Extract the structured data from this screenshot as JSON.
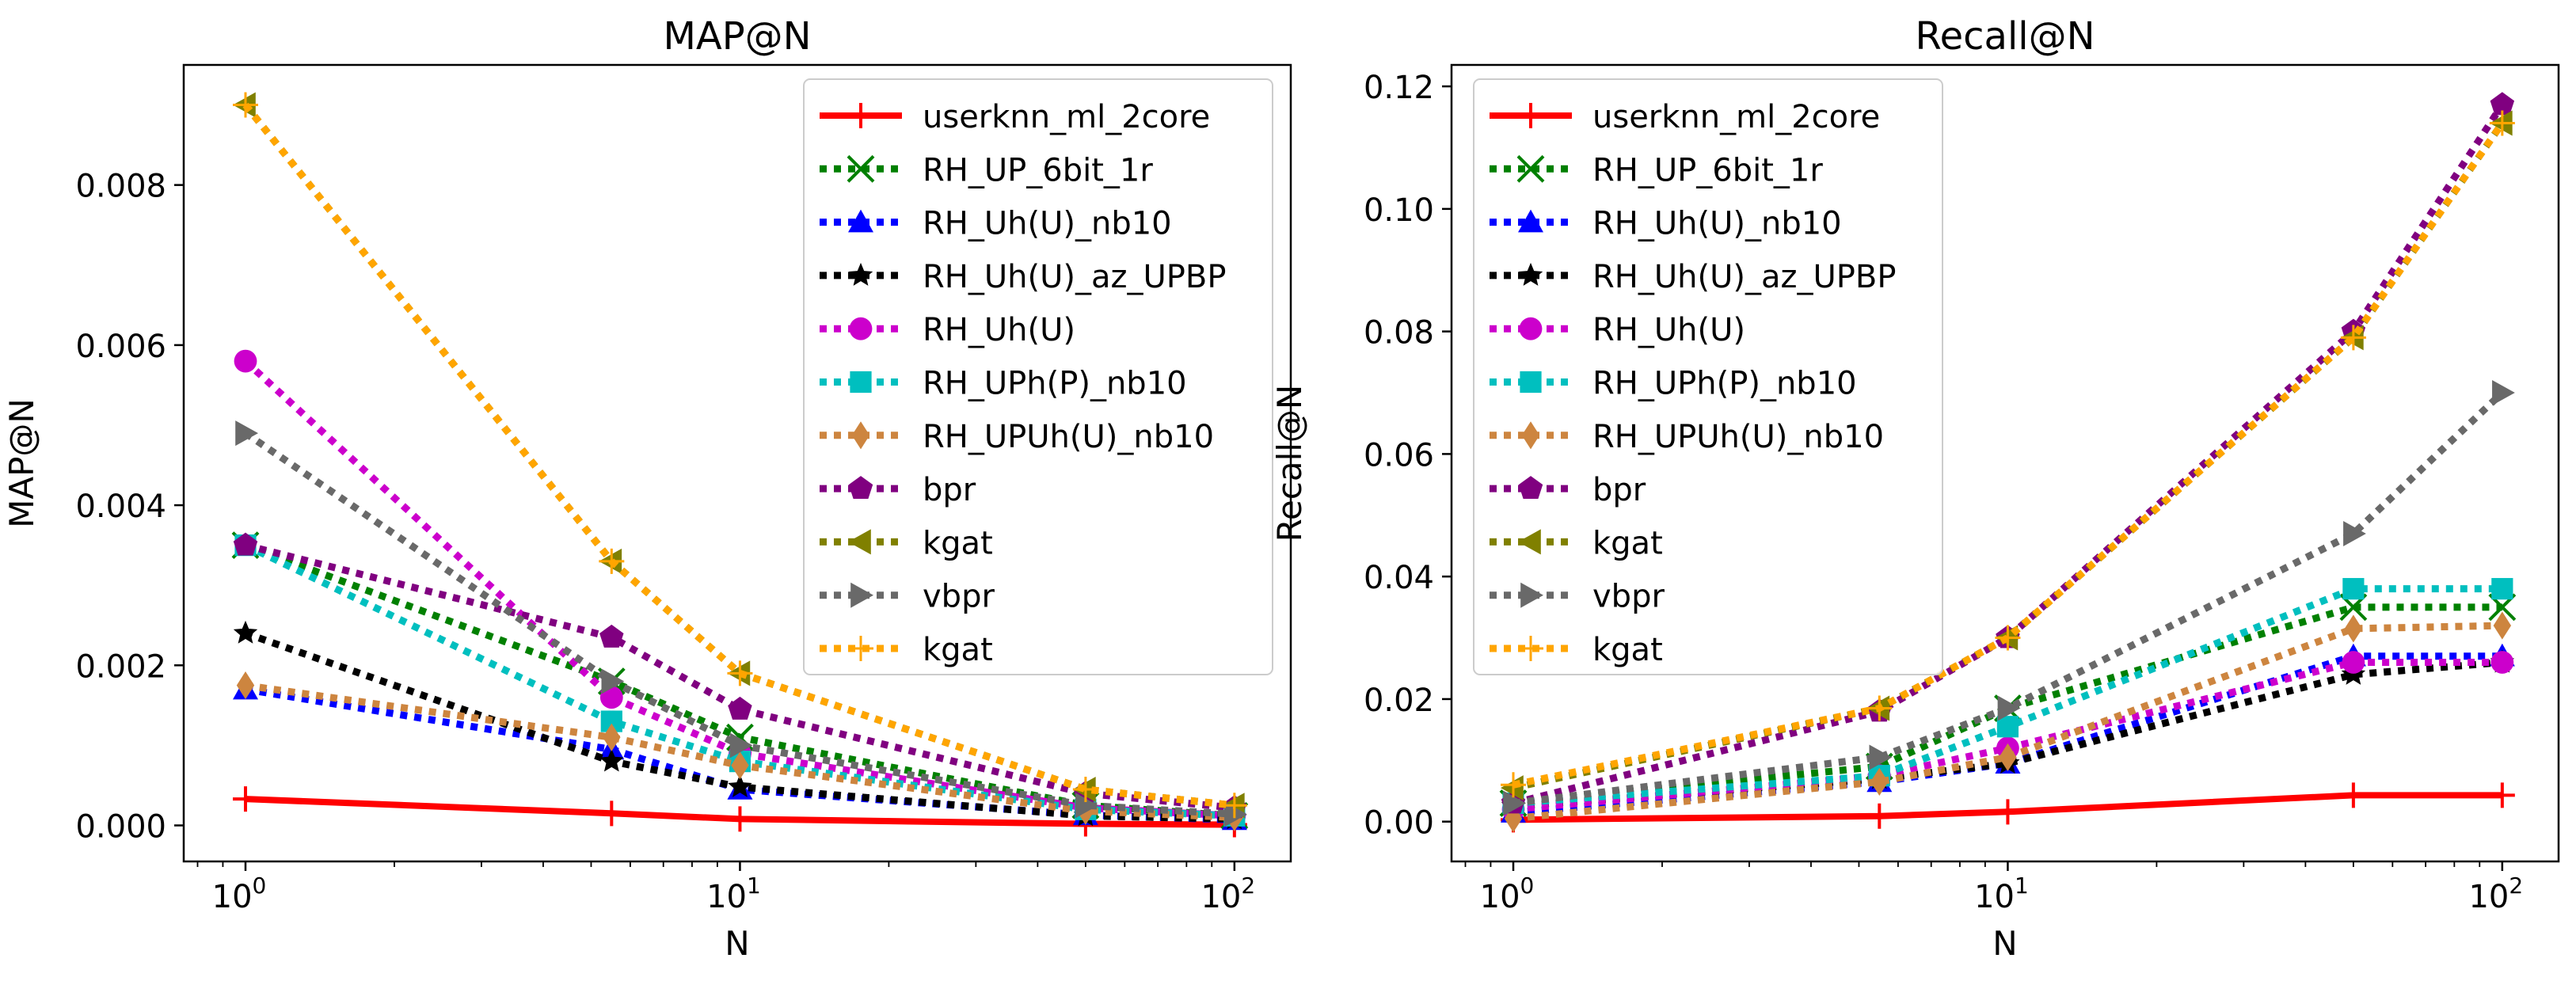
{
  "chart_data": [
    {
      "type": "line",
      "title": "MAP@N",
      "xlabel": "N",
      "ylabel": "MAP@N",
      "xscale": "log",
      "xlim": [
        0.75,
        130
      ],
      "ylim": [
        -0.00045,
        0.0095
      ],
      "x_ticks": [
        "10^0",
        "10^1",
        "10^2"
      ],
      "y_ticks": [
        "0.000",
        "0.002",
        "0.004",
        "0.006",
        "0.008"
      ],
      "y_tick_values": [
        0,
        0.002,
        0.004,
        0.006,
        0.008
      ],
      "legend_position": "top-right",
      "grid": false,
      "x": [
        1,
        5.5,
        10,
        50,
        100
      ],
      "series": [
        {
          "name": "userknn_ml_2core",
          "color": "#ff0000",
          "style": "solid",
          "marker": "plus",
          "values": [
            0.00033,
            0.00015,
            8e-05,
            2e-05,
            1e-05
          ]
        },
        {
          "name": "RH_UP_6bit_1r",
          "color": "#008000",
          "style": "dotted",
          "marker": "x",
          "values": [
            0.0035,
            0.0018,
            0.0011,
            0.00025,
            0.00012
          ]
        },
        {
          "name": "RH_Uh(U)_nb10",
          "color": "#0000ff",
          "style": "dotted",
          "marker": "triangle",
          "values": [
            0.0017,
            0.00095,
            0.00045,
            0.00013,
            7e-05
          ]
        },
        {
          "name": "RH_Uh(U)_az_UPBP",
          "color": "#000000",
          "style": "dotted",
          "marker": "star",
          "values": [
            0.0024,
            0.0008,
            0.00048,
            0.00012,
            8e-05
          ]
        },
        {
          "name": "RH_Uh(U)",
          "color": "#cc00cc",
          "style": "dotted",
          "marker": "circle",
          "values": [
            0.0058,
            0.0016,
            0.0009,
            0.00022,
            0.00012
          ]
        },
        {
          "name": "RH_UPh(P)_nb10",
          "color": "#00bfbf",
          "style": "dotted",
          "marker": "square",
          "values": [
            0.0035,
            0.0013,
            0.0008,
            0.0002,
            0.00012
          ]
        },
        {
          "name": "RH_UPUh(U)_nb10",
          "color": "#cd853f",
          "style": "dotted",
          "marker": "diamond",
          "values": [
            0.00175,
            0.0011,
            0.00075,
            0.00018,
            0.0001
          ]
        },
        {
          "name": "bpr",
          "color": "#800080",
          "style": "dotted",
          "marker": "pentagon",
          "values": [
            0.0035,
            0.00235,
            0.00145,
            0.0004,
            0.00022
          ]
        },
        {
          "name": "kgat",
          "color": "#808000",
          "style": "dotted",
          "marker": "triangle-left",
          "values": [
            0.009,
            0.0033,
            0.0019,
            0.00045,
            0.00025
          ]
        },
        {
          "name": "vbpr",
          "color": "#696969",
          "style": "dotted",
          "marker": "triangle-right",
          "values": [
            0.0049,
            0.0018,
            0.001,
            0.00025,
            0.00014
          ]
        },
        {
          "name": "kgat",
          "color": "#ffa500",
          "style": "dotted",
          "marker": "thin-plus",
          "values": [
            0.009,
            0.0033,
            0.0019,
            0.00045,
            0.00025
          ]
        }
      ]
    },
    {
      "type": "line",
      "title": "Recall@N",
      "xlabel": "N",
      "ylabel": "Recall@N",
      "xscale": "log",
      "xlim": [
        0.75,
        130
      ],
      "ylim": [
        -0.0065,
        0.1235
      ],
      "x_ticks": [
        "10^0",
        "10^1",
        "10^2"
      ],
      "y_ticks": [
        "0.00",
        "0.02",
        "0.04",
        "0.06",
        "0.08",
        "0.10",
        "0.12"
      ],
      "y_tick_values": [
        0,
        0.02,
        0.04,
        0.06,
        0.08,
        0.1,
        0.12
      ],
      "legend_position": "top-left",
      "grid": false,
      "x": [
        1,
        5.5,
        10,
        50,
        100
      ],
      "series": [
        {
          "name": "userknn_ml_2core",
          "color": "#ff0000",
          "style": "solid",
          "marker": "plus",
          "values": [
            0.0003,
            0.0009,
            0.0016,
            0.0043,
            0.0043
          ]
        },
        {
          "name": "RH_UP_6bit_1r",
          "color": "#008000",
          "style": "dotted",
          "marker": "x",
          "values": [
            0.003,
            0.009,
            0.0185,
            0.035,
            0.035
          ]
        },
        {
          "name": "RH_Uh(U)_nb10",
          "color": "#0000ff",
          "style": "dotted",
          "marker": "triangle",
          "values": [
            0.0015,
            0.0065,
            0.0095,
            0.027,
            0.027
          ]
        },
        {
          "name": "RH_Uh(U)_az_UPBP",
          "color": "#000000",
          "style": "dotted",
          "marker": "star",
          "values": [
            0.0025,
            0.007,
            0.0095,
            0.024,
            0.026
          ]
        },
        {
          "name": "RH_Uh(U)",
          "color": "#cc00cc",
          "style": "dotted",
          "marker": "circle",
          "values": [
            0.002,
            0.0075,
            0.012,
            0.026,
            0.026
          ]
        },
        {
          "name": "RH_UPh(P)_nb10",
          "color": "#00bfbf",
          "style": "dotted",
          "marker": "square",
          "values": [
            0.003,
            0.0075,
            0.0155,
            0.038,
            0.038
          ]
        },
        {
          "name": "RH_UPUh(U)_nb10",
          "color": "#cd853f",
          "style": "dotted",
          "marker": "diamond",
          "values": [
            0.0005,
            0.0065,
            0.0105,
            0.0315,
            0.032
          ]
        },
        {
          "name": "bpr",
          "color": "#800080",
          "style": "dotted",
          "marker": "pentagon",
          "values": [
            0.003,
            0.018,
            0.03,
            0.08,
            0.117
          ]
        },
        {
          "name": "kgat",
          "color": "#808000",
          "style": "dotted",
          "marker": "triangle-left",
          "values": [
            0.0055,
            0.0185,
            0.03,
            0.079,
            0.114
          ]
        },
        {
          "name": "vbpr",
          "color": "#696969",
          "style": "dotted",
          "marker": "triangle-right",
          "values": [
            0.003,
            0.0105,
            0.0185,
            0.047,
            0.07
          ]
        },
        {
          "name": "kgat",
          "color": "#ffa500",
          "style": "dotted",
          "marker": "thin-plus",
          "values": [
            0.006,
            0.0185,
            0.03,
            0.079,
            0.114
          ]
        }
      ]
    }
  ]
}
